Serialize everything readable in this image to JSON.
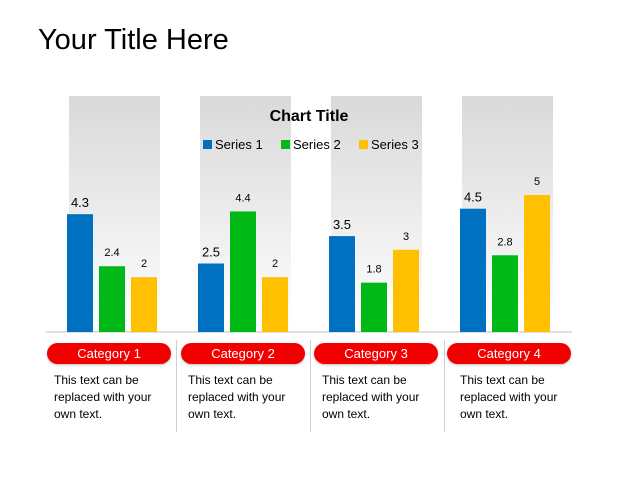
{
  "slide": {
    "title": "Your Title Here"
  },
  "colors": {
    "series1": "#0070c0",
    "series2": "#00b816",
    "series3": "#ffc000",
    "category_pill": "#f20000",
    "column_background_top": "#d9d9d9",
    "column_background_bottom": "#ffffff"
  },
  "chart_data": {
    "type": "bar",
    "title": "Chart Title",
    "legend_position": "top",
    "grid": false,
    "ylim": [
      0,
      5.5
    ],
    "categories": [
      "Category 1",
      "Category 2",
      "Category 3",
      "Category 4"
    ],
    "series": [
      {
        "name": "Series 1",
        "values": [
          4.3,
          2.5,
          3.5,
          4.5
        ]
      },
      {
        "name": "Series 2",
        "values": [
          2.4,
          4.4,
          1.8,
          2.8
        ]
      },
      {
        "name": "Series 3",
        "values": [
          2,
          2,
          3,
          5
        ]
      }
    ]
  },
  "category_descriptions": [
    "This text can be replaced with your own text.",
    "This text can be replaced with your own text.",
    "This text can be replaced with your own text.",
    "This text can be replaced with your own text."
  ]
}
